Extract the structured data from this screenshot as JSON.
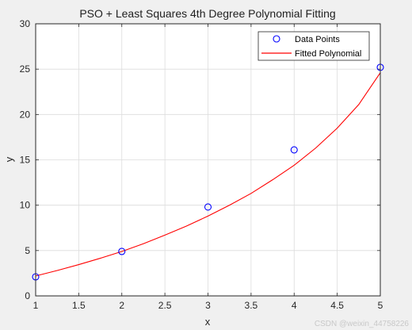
{
  "chart_data": {
    "type": "line",
    "title": "PSO + Least Squares 4th Degree Polynomial Fitting",
    "xlabel": "x",
    "ylabel": "y",
    "xlim": [
      1,
      5
    ],
    "ylim": [
      0,
      30
    ],
    "xticks": [
      1,
      1.5,
      2,
      2.5,
      3,
      3.5,
      4,
      4.5,
      5
    ],
    "yticks": [
      0,
      5,
      10,
      15,
      20,
      25,
      30
    ],
    "grid": true,
    "legend_position": "top-right",
    "series": [
      {
        "name": "Data Points",
        "kind": "scatter",
        "marker": "circle",
        "color": "#0000ff",
        "x": [
          1,
          2,
          3,
          4,
          5
        ],
        "y": [
          2.1,
          4.9,
          9.8,
          16.1,
          25.2
        ]
      },
      {
        "name": "Fitted Polynomial",
        "kind": "line",
        "color": "#ff0000",
        "x": [
          1,
          1.25,
          1.5,
          1.75,
          2,
          2.25,
          2.5,
          2.75,
          3,
          3.25,
          3.5,
          3.75,
          4,
          4.25,
          4.5,
          4.75,
          5
        ],
        "y": [
          2.2,
          2.8,
          3.45,
          4.15,
          4.9,
          5.75,
          6.7,
          7.7,
          8.8,
          10.0,
          11.3,
          12.8,
          14.4,
          16.3,
          18.5,
          21.1,
          24.6
        ]
      }
    ]
  },
  "watermark": "CSDN @weixin_44758226"
}
